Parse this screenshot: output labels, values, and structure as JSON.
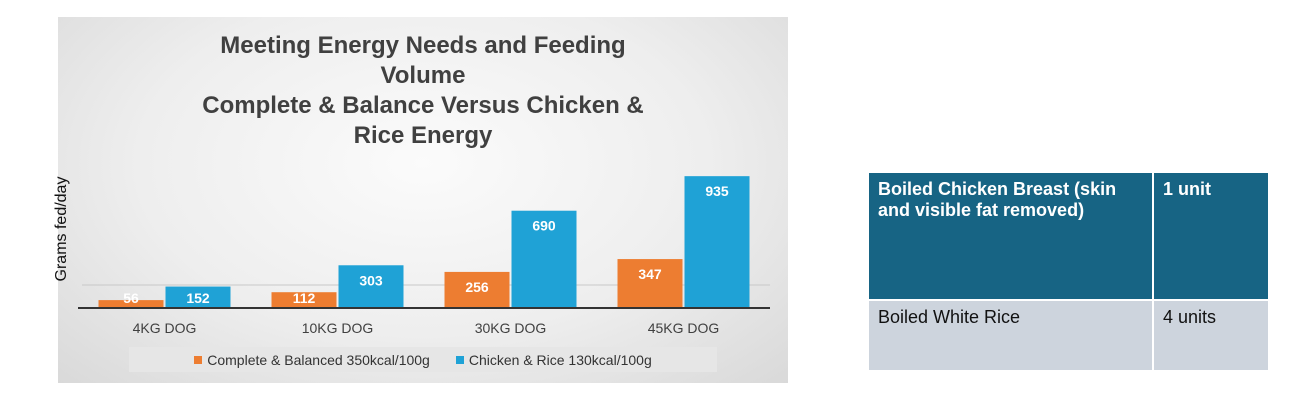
{
  "chart_data": {
    "type": "bar",
    "title_lines": [
      "Meeting Energy Needs and Feeding",
      "Volume",
      "Complete & Balance Versus Chicken &",
      "Rice Energy"
    ],
    "ylabel": "Grams fed/day",
    "categories": [
      "4KG DOG",
      "10KG DOG",
      "30KG DOG",
      "45KG DOG"
    ],
    "ylim": [
      0,
      1000
    ],
    "series": [
      {
        "name": "Complete & Balanced 350kcal/100g",
        "color": "#ed7d31",
        "values": [
          56,
          112,
          256,
          347
        ]
      },
      {
        "name": "Chicken & Rice 130kcal/100g",
        "color": "#1fa2d6",
        "values": [
          152,
          303,
          690,
          935
        ]
      }
    ],
    "legend_position": "bottom",
    "grid": false
  },
  "table": {
    "rows": [
      {
        "item": "Boiled Chicken Breast (skin and visible fat removed)",
        "amount": "1 unit"
      },
      {
        "item": "Boiled White Rice",
        "amount": "4 units"
      }
    ]
  }
}
